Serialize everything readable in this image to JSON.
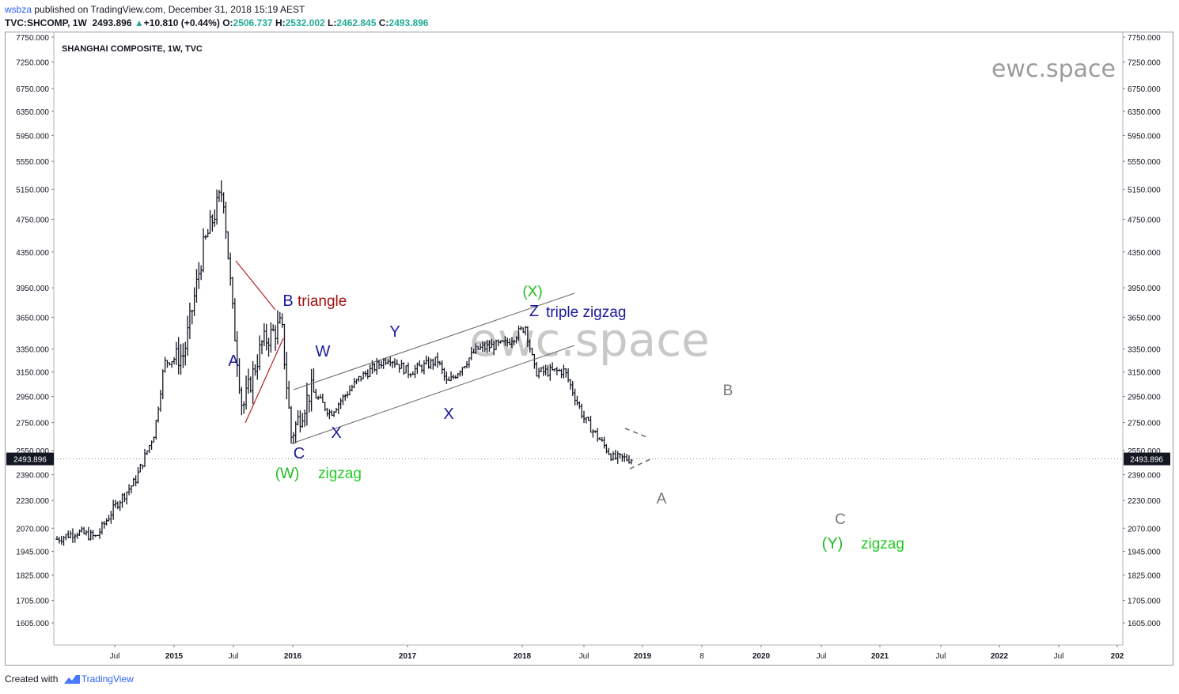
{
  "header": {
    "user": "wsbza",
    "published": "published on TradingView.com, December 31, 2018 15:19 AEST",
    "symbol": "TVC:SHCOMP, 1W",
    "last": "2493.896",
    "change_arrow": "▲",
    "change": "+10.810 (+0.44%)",
    "o_label": "O:",
    "o": "2506.737",
    "h_label": "H:",
    "h": "2532.002",
    "l_label": "L:",
    "l": "2462.845",
    "c_label": "C:",
    "c": "2493.896"
  },
  "footer": {
    "created_with": "Created with",
    "brand": "TradingView"
  },
  "chart_data": {
    "type": "candlestick",
    "title": "SHANGHAI COMPOSITE, 1W, TVC",
    "watermark": "ewc.space",
    "y_scale": "log",
    "ylim": [
      1530,
      7800
    ],
    "y_ticks": [
      "7750.000",
      "7250.000",
      "6750.000",
      "6350.000",
      "5950.000",
      "5550.000",
      "5150.000",
      "4750.000",
      "4350.000",
      "3950.000",
      "3650.000",
      "3350.000",
      "3150.000",
      "2950.000",
      "2750.000",
      "2550.000",
      "2390.000",
      "2230.000",
      "2070.000",
      "1945.000",
      "1825.000",
      "1705.000",
      "1605.000"
    ],
    "x_ticks": [
      "Jul",
      "2015",
      "Jul",
      "2016",
      "2017",
      "2018",
      "Jul",
      "2019",
      "8",
      "2020",
      "Jul",
      "2021",
      "Jul",
      "2022",
      "Jul",
      "202"
    ],
    "last_price_label": "2493.896",
    "last_price": 2493.896,
    "price_path": [
      {
        "date": "2014-01",
        "close": 2010
      },
      {
        "date": "2014-03",
        "close": 2050
      },
      {
        "date": "2014-05",
        "close": 2020
      },
      {
        "date": "2014-07",
        "close": 2200
      },
      {
        "date": "2014-09",
        "close": 2350
      },
      {
        "date": "2014-11",
        "close": 2680
      },
      {
        "date": "2014-12",
        "close": 3230
      },
      {
        "date": "2015-02",
        "close": 3300
      },
      {
        "date": "2015-04",
        "close": 4400
      },
      {
        "date": "2015-06",
        "close": 5166
      },
      {
        "date": "2015-07",
        "close": 3700
      },
      {
        "date": "2015-08",
        "close": 2850
      },
      {
        "date": "2015-10",
        "close": 3400
      },
      {
        "date": "2015-12",
        "close": 3580
      },
      {
        "date": "2016-01",
        "close": 2650
      },
      {
        "date": "2016-03",
        "close": 3000
      },
      {
        "date": "2016-05",
        "close": 2820
      },
      {
        "date": "2016-08",
        "close": 3100
      },
      {
        "date": "2016-11",
        "close": 3280
      },
      {
        "date": "2017-01",
        "close": 3150
      },
      {
        "date": "2017-04",
        "close": 3250
      },
      {
        "date": "2017-05",
        "close": 3050
      },
      {
        "date": "2017-08",
        "close": 3350
      },
      {
        "date": "2017-11",
        "close": 3400
      },
      {
        "date": "2018-01",
        "close": 3560
      },
      {
        "date": "2018-02",
        "close": 3150
      },
      {
        "date": "2018-05",
        "close": 3160
      },
      {
        "date": "2018-07",
        "close": 2780
      },
      {
        "date": "2018-10",
        "close": 2500
      },
      {
        "date": "2018-12",
        "close": 2494
      }
    ],
    "annotations": [
      {
        "text": "A",
        "color": "#1a1a9e"
      },
      {
        "text": "B",
        "color": "#1a1a9e"
      },
      {
        "text": "triangle",
        "color": "#a01010"
      },
      {
        "text": "C",
        "color": "#1a1a9e"
      },
      {
        "text": "(W)",
        "color": "#22bb22"
      },
      {
        "text": "zigzag",
        "color": "#22cc22"
      },
      {
        "text": "W",
        "color": "#1a1a9e"
      },
      {
        "text": "X",
        "color": "#1a1a9e"
      },
      {
        "text": "Y",
        "color": "#1a1a9e"
      },
      {
        "text": "X",
        "color": "#1a1a9e"
      },
      {
        "text": "Z",
        "color": "#1a1a9e"
      },
      {
        "text": "triple zigzag",
        "color": "#1a1a9e"
      },
      {
        "text": "(X)",
        "color": "#22bb22"
      },
      {
        "text": "B",
        "color": "#777777"
      },
      {
        "text": "A",
        "color": "#777777"
      },
      {
        "text": "C",
        "color": "#777777"
      },
      {
        "text": "(Y)",
        "color": "#22bb22"
      },
      {
        "text": "zigzag",
        "color": "#22cc22"
      }
    ],
    "colors": {
      "candle": "#131722",
      "triangle": "#b22222",
      "channel": "#666666",
      "price_label_bg": "#131722",
      "watermark": "#9c9c9c"
    }
  }
}
